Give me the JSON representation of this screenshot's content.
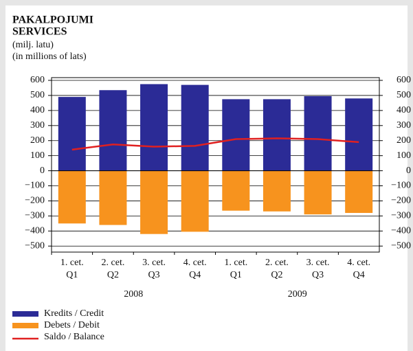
{
  "chart_data": {
    "type": "bar",
    "title": [
      "PAKALPOJUMI",
      "SERVICES"
    ],
    "subtitle": [
      "(milj. latu)",
      "(in millions of lats)"
    ],
    "categories": [
      "1. cet.",
      "2. cet.",
      "3. cet.",
      "4. cet.",
      "1. cet.",
      "2. cet.",
      "3. cet.",
      "4. cet."
    ],
    "category_sublabels": [
      "Q1",
      "Q2",
      "Q3",
      "Q4",
      "Q1",
      "Q2",
      "Q3",
      "Q4"
    ],
    "groups": [
      "2008",
      "2009"
    ],
    "series": [
      {
        "name": "Kredits / Credit",
        "color": "#2b2b96",
        "type": "bar",
        "values": [
          490,
          535,
          575,
          570,
          475,
          475,
          495,
          480
        ]
      },
      {
        "name": "Debets / Debit",
        "color": "#f7931e",
        "type": "bar",
        "values": [
          -350,
          -360,
          -420,
          -405,
          -265,
          -270,
          -290,
          -280
        ]
      },
      {
        "name": "Saldo / Balance",
        "color": "#e02020",
        "type": "line",
        "values": [
          140,
          175,
          160,
          165,
          210,
          215,
          210,
          190
        ]
      }
    ],
    "ylim": [
      -540,
      600
    ],
    "yticks": [
      {
        "value": -500,
        "label": "−500"
      },
      {
        "value": -400,
        "label": "−400"
      },
      {
        "value": -300,
        "label": "−300"
      },
      {
        "value": -200,
        "label": "−200"
      },
      {
        "value": -100,
        "label": "−100"
      },
      0,
      100,
      200,
      300,
      400,
      500,
      600
    ],
    "grid": true
  }
}
